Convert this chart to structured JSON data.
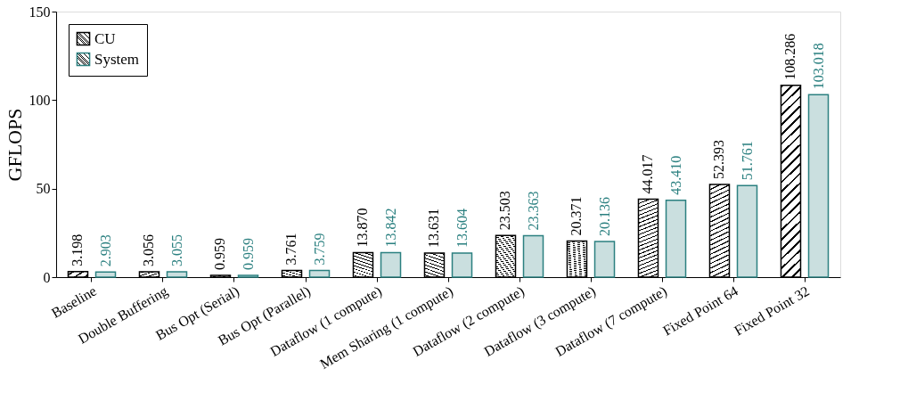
{
  "chart_data": {
    "type": "bar",
    "ylabel": "GFLOPS",
    "categories": [
      "Baseline",
      "Double Buffering",
      "Bus Opt (Serial)",
      "Bus Opt (Parallel)",
      "Dataflow (1 compute)",
      "Mem Sharing (1 compute)",
      "Dataflow (2 compute)",
      "Dataflow (3 compute)",
      "Dataflow (7 compute)",
      "Fixed Point 64",
      "Fixed Point 32"
    ],
    "series": [
      {
        "name": "CU",
        "color": "#000000",
        "values": [
          3.198,
          3.056,
          0.959,
          3.761,
          13.87,
          13.631,
          23.503,
          20.371,
          44.017,
          52.393,
          108.286
        ],
        "value_labels": [
          "3.198",
          "3.056",
          "0.959",
          "3.761",
          "13.870",
          "13.631",
          "23.503",
          "20.371",
          "44.017",
          "52.393",
          "108.286"
        ]
      },
      {
        "name": "System",
        "color": "#2b8080",
        "values": [
          2.903,
          3.055,
          0.959,
          3.759,
          13.842,
          13.604,
          23.363,
          20.136,
          43.41,
          51.761,
          103.018
        ],
        "value_labels": [
          "2.903",
          "3.055",
          "0.959",
          "3.759",
          "13.842",
          "13.604",
          "23.363",
          "20.136",
          "43.410",
          "51.761",
          "103.018"
        ]
      }
    ],
    "ylim": [
      0,
      150
    ],
    "yticks": [
      0,
      50,
      100,
      150
    ],
    "grid": false,
    "legend": "top left"
  }
}
